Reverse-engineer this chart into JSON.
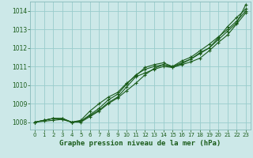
{
  "title": "Graphe pression niveau de la mer (hPa)",
  "bg_color": "#cce8e8",
  "grid_color": "#99cccc",
  "line_color": "#1a5c1a",
  "xlim": [
    -0.5,
    23.5
  ],
  "ylim": [
    1007.6,
    1014.5
  ],
  "yticks": [
    1008,
    1009,
    1010,
    1011,
    1012,
    1013,
    1014
  ],
  "xticks": [
    0,
    1,
    2,
    3,
    4,
    5,
    6,
    7,
    8,
    9,
    10,
    11,
    12,
    13,
    14,
    15,
    16,
    17,
    18,
    19,
    20,
    21,
    22,
    23
  ],
  "series": [
    [
      1008.0,
      1008.1,
      1008.2,
      1008.2,
      1008.0,
      1008.05,
      1008.35,
      1008.65,
      1009.05,
      1009.35,
      1009.9,
      1010.45,
      1010.65,
      1010.85,
      1011.0,
      1010.95,
      1011.1,
      1011.25,
      1011.45,
      1011.85,
      1012.3,
      1012.7,
      1013.3,
      1013.9
    ],
    [
      1008.0,
      1008.1,
      1008.2,
      1008.15,
      1008.0,
      1008.05,
      1008.4,
      1008.75,
      1009.2,
      1009.5,
      1010.05,
      1010.55,
      1010.85,
      1011.0,
      1011.1,
      1011.0,
      1011.2,
      1011.4,
      1011.7,
      1012.0,
      1012.55,
      1013.15,
      1013.65,
      1014.1
    ],
    [
      1008.0,
      1008.1,
      1008.2,
      1008.2,
      1008.0,
      1008.1,
      1008.6,
      1009.0,
      1009.35,
      1009.6,
      1010.1,
      1010.5,
      1010.95,
      1011.1,
      1011.2,
      1011.0,
      1011.3,
      1011.5,
      1011.85,
      1012.2,
      1012.6,
      1013.0,
      1013.45,
      1014.0
    ],
    [
      1008.0,
      1008.05,
      1008.1,
      1008.15,
      1008.0,
      1008.0,
      1008.3,
      1008.6,
      1009.0,
      1009.3,
      1009.7,
      1010.1,
      1010.55,
      1010.9,
      1011.1,
      1010.95,
      1011.15,
      1011.4,
      1011.75,
      1012.0,
      1012.45,
      1012.9,
      1013.35,
      1014.35
    ]
  ]
}
